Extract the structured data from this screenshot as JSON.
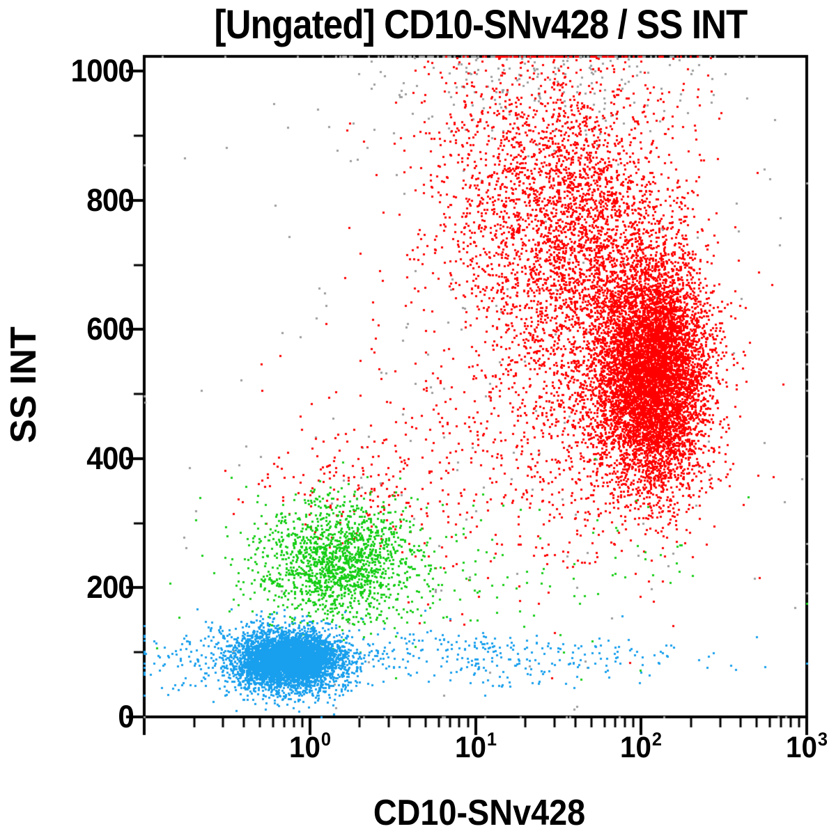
{
  "chart_data": {
    "type": "scatter",
    "title": "[Ungated] CD10-SNv428 / SS INT",
    "xlabel": "CD10-SNv428",
    "ylabel": "SS INT",
    "x_scale": "log",
    "x_range": [
      0.1,
      1000
    ],
    "x_ticks": [
      {
        "base": "10",
        "exp": "0",
        "value": 1
      },
      {
        "base": "10",
        "exp": "1",
        "value": 10
      },
      {
        "base": "10",
        "exp": "2",
        "value": 100
      },
      {
        "base": "10",
        "exp": "3",
        "value": 1000
      }
    ],
    "y_scale": "linear",
    "y_range": [
      0,
      1023
    ],
    "y_ticks": [
      {
        "label": "0",
        "value": 0
      },
      {
        "label": "200",
        "value": 200
      },
      {
        "label": "400",
        "value": 400
      },
      {
        "label": "600",
        "value": 600
      },
      {
        "label": "800",
        "value": 800
      },
      {
        "label": "1000",
        "value": 1000
      }
    ],
    "y_minor_ticks": [
      100,
      300,
      500,
      700,
      900
    ],
    "grid": false,
    "legend": "none",
    "axis_color": "#000000",
    "background": "#ffffff",
    "dot_size_px": 3,
    "random_seed": 20240817,
    "populations": [
      {
        "name": "debris-gray-scatter",
        "color": "#9C9C9C",
        "n": 230,
        "x_log_mean": 1.2,
        "x_log_sigma": 1.1,
        "y_mean": 560,
        "y_sigma": 330
      },
      {
        "name": "debris-gray-top",
        "color": "#9C9C9C",
        "n": 300,
        "x_log_mean": 1.35,
        "x_log_sigma": 0.55,
        "y_mean": 1005,
        "y_sigma": 55
      },
      {
        "name": "granulocytes-red-low-scatter",
        "color": "#FF0000",
        "n": 450,
        "x_log_mean": 1.25,
        "x_log_sigma": 0.55,
        "y_mean": 420,
        "y_sigma": 110
      },
      {
        "name": "granulocytes-red-left-scatter",
        "color": "#FF0000",
        "n": 160,
        "x_log_mean": 0.3,
        "x_log_sigma": 0.38,
        "y_mean": 350,
        "y_sigma": 50
      },
      {
        "name": "granulocytes-red-upper-plume",
        "color": "#FF0000",
        "n": 1400,
        "x_log_mean": 1.32,
        "x_log_sigma": 0.33,
        "y_mean": 810,
        "y_sigma": 115
      },
      {
        "name": "granulocytes-red-mid-plume",
        "color": "#FF0000",
        "n": 2800,
        "x_log_mean": 1.72,
        "x_log_sigma": 0.3,
        "y_mean": 680,
        "y_sigma": 150
      },
      {
        "name": "granulocytes-red-main",
        "color": "#FF0000",
        "n": 6800,
        "x_log_mean": 2.07,
        "x_log_sigma": 0.17,
        "y_mean": 528,
        "y_sigma": 88
      },
      {
        "name": "monocytes-green-scatter",
        "color": "#16CE16",
        "n": 130,
        "x_log_mean": 1.1,
        "x_log_sigma": 0.85,
        "y_mean": 215,
        "y_sigma": 65
      },
      {
        "name": "monocytes-green-core",
        "color": "#16CE16",
        "n": 1550,
        "x_log_mean": 0.17,
        "x_log_sigma": 0.24,
        "y_mean": 243,
        "y_sigma": 46
      },
      {
        "name": "lymphocytes-blue-right-tail",
        "color": "#189FED",
        "n": 380,
        "x_log_mean": 0.85,
        "x_log_sigma": 0.8,
        "y_mean": 94,
        "y_sigma": 22
      },
      {
        "name": "lymphocytes-blue-left-spread",
        "color": "#189FED",
        "n": 260,
        "x_log_mean": -0.38,
        "x_log_sigma": 0.3,
        "y_mean": 95,
        "y_sigma": 28
      },
      {
        "name": "lymphocytes-blue-core",
        "color": "#189FED",
        "n": 4500,
        "x_log_mean": -0.12,
        "x_log_sigma": 0.16,
        "y_mean": 88,
        "y_sigma": 23
      }
    ]
  }
}
